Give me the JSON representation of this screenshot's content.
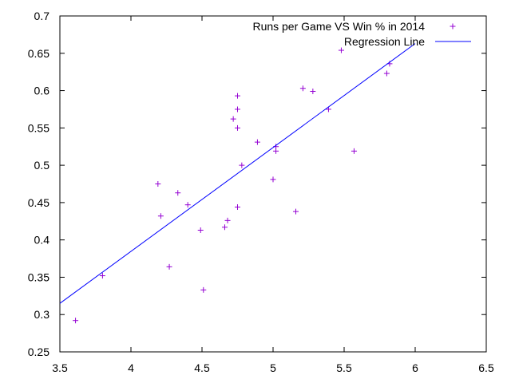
{
  "chart_data": {
    "type": "scatter",
    "title": "",
    "xlabel": "",
    "ylabel": "",
    "xlim": [
      3.5,
      6.5
    ],
    "ylim": [
      0.25,
      0.7
    ],
    "x_ticks": [
      "3.5",
      "4",
      "4.5",
      "5",
      "5.5",
      "6",
      "6.5"
    ],
    "y_ticks": [
      "0.25",
      "0.3",
      "0.35",
      "0.4",
      "0.45",
      "0.5",
      "0.55",
      "0.6",
      "0.65",
      "0.7"
    ],
    "grid": false,
    "legend_position": "top-right",
    "series": [
      {
        "name": "Runs per Game VS Win % in 2014",
        "type": "scatter",
        "marker": "+",
        "color": "#9400d3",
        "points": [
          [
            3.61,
            0.292
          ],
          [
            3.8,
            0.352
          ],
          [
            4.19,
            0.475
          ],
          [
            4.21,
            0.432
          ],
          [
            4.27,
            0.364
          ],
          [
            4.33,
            0.463
          ],
          [
            4.4,
            0.447
          ],
          [
            4.49,
            0.413
          ],
          [
            4.51,
            0.333
          ],
          [
            4.66,
            0.417
          ],
          [
            4.68,
            0.426
          ],
          [
            4.72,
            0.562
          ],
          [
            4.75,
            0.593
          ],
          [
            4.75,
            0.575
          ],
          [
            4.75,
            0.55
          ],
          [
            4.75,
            0.444
          ],
          [
            4.78,
            0.5
          ],
          [
            4.89,
            0.531
          ],
          [
            5.0,
            0.481
          ],
          [
            5.02,
            0.525
          ],
          [
            5.02,
            0.519
          ],
          [
            5.16,
            0.438
          ],
          [
            5.21,
            0.603
          ],
          [
            5.28,
            0.599
          ],
          [
            5.39,
            0.575
          ],
          [
            5.48,
            0.654
          ],
          [
            5.57,
            0.519
          ],
          [
            5.8,
            0.623
          ],
          [
            5.82,
            0.636
          ]
        ]
      },
      {
        "name": "Regression Line",
        "type": "line",
        "color": "#0000ff",
        "points": [
          [
            3.5,
            0.315
          ],
          [
            6.0,
            0.663
          ]
        ]
      }
    ]
  }
}
